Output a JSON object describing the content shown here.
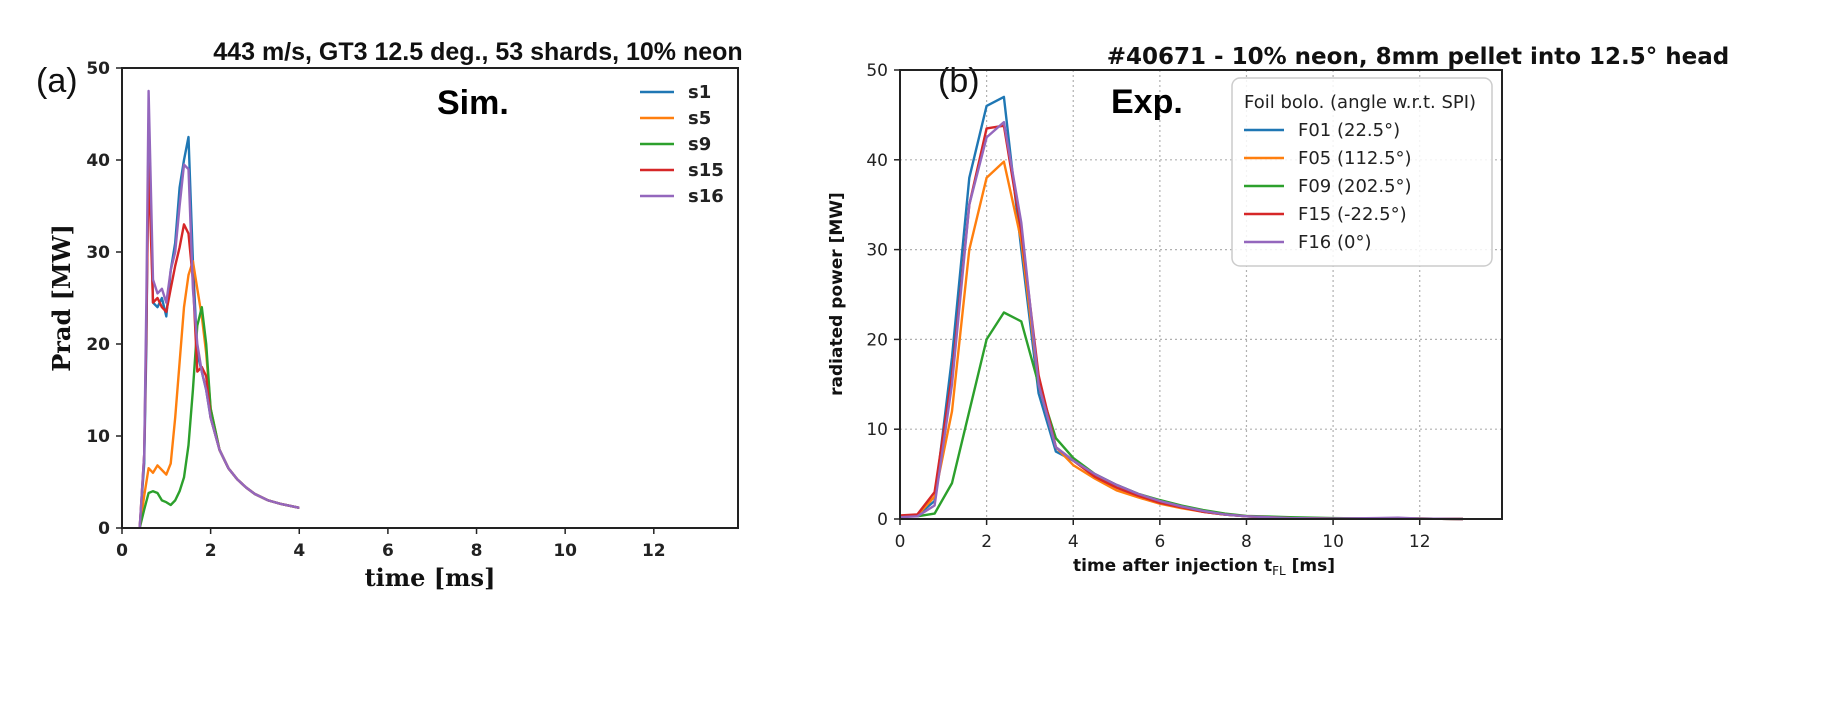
{
  "chart_data": [
    {
      "panel": "(a)",
      "type": "line",
      "title": "443 m/s, GT3 12.5 deg., 53 shards, 10% neon",
      "annotation": "Sim.",
      "xlabel": "time [ms]",
      "ylabel": "Prad [MW]",
      "xlim": [
        0,
        13.9
      ],
      "ylim": [
        0,
        50
      ],
      "xticks": [
        0,
        2,
        4,
        6,
        8,
        10,
        12
      ],
      "yticks": [
        0,
        10,
        20,
        30,
        40,
        50
      ],
      "grid": false,
      "legend_position": "top-right",
      "series": [
        {
          "name": "s1",
          "color": "#1f77b4",
          "x": [
            0.4,
            0.5,
            0.55,
            0.6,
            0.7,
            0.8,
            0.9,
            1.0,
            1.1,
            1.2,
            1.3,
            1.4,
            1.5,
            1.6,
            1.7,
            1.8,
            1.9,
            2.0,
            2.2,
            2.4,
            2.6,
            2.8,
            3.0,
            3.3,
            3.6,
            4.0
          ],
          "y": [
            0,
            7,
            20,
            44,
            24.5,
            24,
            25,
            23,
            28,
            31,
            37,
            40,
            42.5,
            29,
            19,
            17,
            15,
            12,
            8.5,
            6.5,
            5.3,
            4.4,
            3.7,
            3.0,
            2.6,
            2.2
          ]
        },
        {
          "name": "s5",
          "color": "#ff7f0e",
          "x": [
            0.4,
            0.5,
            0.6,
            0.7,
            0.8,
            0.9,
            1.0,
            1.1,
            1.2,
            1.3,
            1.4,
            1.5,
            1.6,
            1.7,
            1.8,
            1.9,
            2.0,
            2.2,
            2.4,
            2.6,
            2.8,
            3.0,
            3.3,
            3.6,
            4.0
          ],
          "y": [
            0,
            3.5,
            6.5,
            6,
            6.8,
            6.3,
            5.8,
            7,
            12,
            18,
            24,
            27.5,
            29,
            26,
            23,
            19,
            13,
            8.5,
            6.5,
            5.3,
            4.4,
            3.7,
            3.0,
            2.6,
            2.2
          ]
        },
        {
          "name": "s9",
          "color": "#2ca02c",
          "x": [
            0.4,
            0.5,
            0.6,
            0.7,
            0.8,
            0.9,
            1.0,
            1.1,
            1.2,
            1.3,
            1.4,
            1.5,
            1.6,
            1.7,
            1.8,
            1.9,
            2.0,
            2.2,
            2.4,
            2.6,
            2.8,
            3.0,
            3.3,
            3.6,
            4.0
          ],
          "y": [
            0,
            2,
            3.8,
            4,
            3.8,
            3,
            2.8,
            2.5,
            3,
            4,
            5.5,
            9,
            15,
            22,
            24,
            20,
            13,
            8.5,
            6.5,
            5.3,
            4.4,
            3.7,
            3.0,
            2.6,
            2.2
          ]
        },
        {
          "name": "s15",
          "color": "#d62728",
          "x": [
            0.4,
            0.5,
            0.55,
            0.6,
            0.7,
            0.8,
            0.9,
            1.0,
            1.1,
            1.2,
            1.3,
            1.4,
            1.5,
            1.6,
            1.7,
            1.8,
            1.9,
            2.0,
            2.2,
            2.4,
            2.6,
            2.8,
            3.0,
            3.3,
            3.6,
            4.0
          ],
          "y": [
            0,
            8,
            22,
            40,
            24.5,
            25,
            24,
            23.5,
            26,
            28.5,
            30.5,
            33,
            32,
            27,
            17,
            17.5,
            16.5,
            12,
            8.5,
            6.5,
            5.3,
            4.4,
            3.7,
            3.0,
            2.6,
            2.2
          ]
        },
        {
          "name": "s16",
          "color": "#9467bd",
          "x": [
            0.4,
            0.5,
            0.55,
            0.6,
            0.7,
            0.8,
            0.9,
            1.0,
            1.1,
            1.2,
            1.3,
            1.4,
            1.5,
            1.6,
            1.7,
            1.8,
            1.9,
            2.0,
            2.2,
            2.4,
            2.6,
            2.8,
            3.0,
            3.3,
            3.6,
            4.0
          ],
          "y": [
            0,
            8,
            25,
            47.5,
            27,
            25.5,
            26,
            24.5,
            28,
            30,
            35,
            39.5,
            39,
            26,
            20,
            17,
            15,
            12,
            8.5,
            6.5,
            5.3,
            4.4,
            3.7,
            3.0,
            2.6,
            2.2
          ]
        }
      ]
    },
    {
      "panel": "(b)",
      "type": "line",
      "title": "#40671 - 10% neon, 8mm pellet into 12.5° head",
      "annotation": "Exp.",
      "xlabel": "time after injection t",
      "xlabel_subscript": "FL",
      "xlabel_unit": " [ms]",
      "ylabel": "radiated power [MW]",
      "xlim": [
        0,
        13.9
      ],
      "ylim": [
        0,
        50
      ],
      "xticks": [
        0,
        2,
        4,
        6,
        8,
        10,
        12
      ],
      "yticks": [
        0,
        10,
        20,
        30,
        40,
        50
      ],
      "grid": true,
      "legend_position": "top-right",
      "legend_title": "Foil bolo. (angle w.r.t. SPI)",
      "series": [
        {
          "name": "F01 (22.5°)",
          "color": "#1f77b4",
          "x": [
            0,
            0.4,
            0.8,
            1.2,
            1.6,
            2.0,
            2.4,
            2.8,
            3.2,
            3.6,
            4.0,
            4.5,
            5.0,
            5.5,
            6.0,
            6.5,
            7.0,
            7.5,
            8.0,
            9.0,
            10.0,
            11.0,
            12.0,
            13.0
          ],
          "y": [
            0.3,
            0.4,
            2,
            18,
            38,
            46,
            47,
            30,
            14,
            7.5,
            6.5,
            5,
            3.8,
            2.8,
            2,
            1.4,
            0.8,
            0.5,
            0.3,
            0.1,
            0.05,
            0.05,
            0.05,
            0
          ]
        },
        {
          "name": "F05 (112.5°)",
          "color": "#ff7f0e",
          "x": [
            0,
            0.4,
            0.8,
            1.2,
            1.6,
            2.0,
            2.4,
            2.8,
            3.2,
            3.6,
            4.0,
            4.5,
            5.0,
            5.5,
            6.0,
            6.5,
            7.0,
            7.5,
            8.0,
            9.0,
            10.0,
            11.0,
            12.0,
            13.0
          ],
          "y": [
            0.3,
            0.4,
            2.5,
            12,
            30,
            38,
            39.8,
            31,
            15,
            8,
            6,
            4.5,
            3.2,
            2.4,
            1.7,
            1.2,
            0.8,
            0.5,
            0.3,
            0.1,
            0.05,
            0.05,
            0.05,
            0
          ]
        },
        {
          "name": "F09 (202.5°)",
          "color": "#2ca02c",
          "x": [
            0,
            0.4,
            0.8,
            1.2,
            1.6,
            2.0,
            2.4,
            2.8,
            3.2,
            3.6,
            4.0,
            4.5,
            5.0,
            5.5,
            6.0,
            6.5,
            7.0,
            7.5,
            8.0,
            9.0,
            10.0,
            11.0,
            12.0,
            13.0
          ],
          "y": [
            0.3,
            0.3,
            0.6,
            4,
            12,
            20,
            23,
            22,
            15,
            9,
            6.8,
            5,
            3.8,
            2.8,
            2.1,
            1.5,
            1.0,
            0.6,
            0.35,
            0.2,
            0.1,
            0.05,
            0.05,
            0
          ]
        },
        {
          "name": "F15 (-22.5°)",
          "color": "#d62728",
          "x": [
            0,
            0.4,
            0.8,
            1.2,
            1.6,
            2.0,
            2.4,
            2.8,
            3.2,
            3.6,
            4.0,
            4.5,
            5.0,
            5.5,
            6.0,
            6.5,
            7.0,
            7.5,
            8.0,
            9.0,
            10.0,
            11.0,
            12.0,
            13.0
          ],
          "y": [
            0.4,
            0.5,
            3,
            16,
            35,
            43.5,
            43.8,
            32,
            16,
            8,
            6.5,
            4.7,
            3.5,
            2.6,
            1.8,
            1.3,
            0.8,
            0.5,
            0.3,
            0.1,
            0.05,
            0.05,
            0.05,
            0
          ]
        },
        {
          "name": "F16 (0°)",
          "color": "#9467bd",
          "x": [
            0,
            0.4,
            0.8,
            1.2,
            1.6,
            2.0,
            2.4,
            2.8,
            3.2,
            3.6,
            4.0,
            4.5,
            5.0,
            5.5,
            6.0,
            6.5,
            7.0,
            7.5,
            8.0,
            9.0,
            10.0,
            11.0,
            11.5,
            12.0,
            13.0
          ],
          "y": [
            0.2,
            0.3,
            1.5,
            15,
            35,
            42.5,
            44.2,
            33,
            15,
            8,
            6.5,
            5,
            3.8,
            2.8,
            2,
            1.4,
            0.9,
            0.5,
            0.3,
            0.1,
            0.05,
            0.1,
            0.15,
            0.05,
            0
          ]
        }
      ]
    }
  ]
}
